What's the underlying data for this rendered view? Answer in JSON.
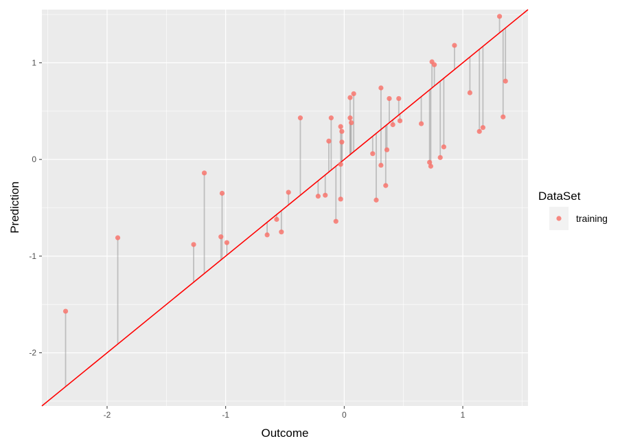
{
  "chart_data": {
    "type": "scatter",
    "xlabel": "Outcome",
    "ylabel": "Prediction",
    "xlim": [
      -2.55,
      1.55
    ],
    "ylim": [
      -2.55,
      1.55
    ],
    "x_ticks": [
      -2,
      -1,
      0,
      1
    ],
    "y_ticks": [
      -2,
      -1,
      0,
      1
    ],
    "x_tick_labels": [
      "-2",
      "-1",
      "0",
      "1"
    ],
    "y_tick_labels": [
      "-2",
      "-1",
      "0",
      "1"
    ],
    "grid": true,
    "reference_line": {
      "intercept": 0,
      "slope": 1,
      "color": "#ff0000"
    },
    "residual_segments": true,
    "legend": {
      "title": "DataSet",
      "position": "right",
      "entries": [
        "training"
      ]
    },
    "series": [
      {
        "name": "training",
        "color": "#f8766d",
        "points": [
          {
            "x": -2.35,
            "y": -1.57
          },
          {
            "x": -1.91,
            "y": -0.81
          },
          {
            "x": -1.27,
            "y": -0.88
          },
          {
            "x": -1.18,
            "y": -0.14
          },
          {
            "x": -1.04,
            "y": -0.8
          },
          {
            "x": -1.03,
            "y": -0.35
          },
          {
            "x": -0.99,
            "y": -0.86
          },
          {
            "x": -0.65,
            "y": -0.78
          },
          {
            "x": -0.57,
            "y": -0.62
          },
          {
            "x": -0.53,
            "y": -0.75
          },
          {
            "x": -0.47,
            "y": -0.34
          },
          {
            "x": -0.37,
            "y": 0.43
          },
          {
            "x": -0.22,
            "y": -0.38
          },
          {
            "x": -0.16,
            "y": -0.37
          },
          {
            "x": -0.13,
            "y": 0.19
          },
          {
            "x": -0.11,
            "y": 0.43
          },
          {
            "x": -0.07,
            "y": -0.64
          },
          {
            "x": -0.03,
            "y": 0.34
          },
          {
            "x": -0.03,
            "y": -0.05
          },
          {
            "x": -0.03,
            "y": -0.41
          },
          {
            "x": -0.02,
            "y": 0.29
          },
          {
            "x": -0.02,
            "y": 0.18
          },
          {
            "x": 0.05,
            "y": 0.43
          },
          {
            "x": 0.05,
            "y": 0.64
          },
          {
            "x": 0.06,
            "y": 0.38
          },
          {
            "x": 0.08,
            "y": 0.68
          },
          {
            "x": 0.24,
            "y": 0.06
          },
          {
            "x": 0.27,
            "y": -0.42
          },
          {
            "x": 0.31,
            "y": 0.74
          },
          {
            "x": 0.31,
            "y": -0.06
          },
          {
            "x": 0.35,
            "y": -0.27
          },
          {
            "x": 0.36,
            "y": 0.1
          },
          {
            "x": 0.38,
            "y": 0.63
          },
          {
            "x": 0.41,
            "y": 0.36
          },
          {
            "x": 0.46,
            "y": 0.63
          },
          {
            "x": 0.47,
            "y": 0.4
          },
          {
            "x": 0.65,
            "y": 0.37
          },
          {
            "x": 0.72,
            "y": -0.03
          },
          {
            "x": 0.73,
            "y": -0.07
          },
          {
            "x": 0.74,
            "y": 1.01
          },
          {
            "x": 0.76,
            "y": 0.98
          },
          {
            "x": 0.81,
            "y": 0.02
          },
          {
            "x": 0.84,
            "y": 0.13
          },
          {
            "x": 0.93,
            "y": 1.18
          },
          {
            "x": 1.06,
            "y": 0.69
          },
          {
            "x": 1.14,
            "y": 0.29
          },
          {
            "x": 1.17,
            "y": 0.33
          },
          {
            "x": 1.31,
            "y": 1.48
          },
          {
            "x": 1.34,
            "y": 0.44
          },
          {
            "x": 1.36,
            "y": 0.81
          }
        ]
      }
    ]
  }
}
